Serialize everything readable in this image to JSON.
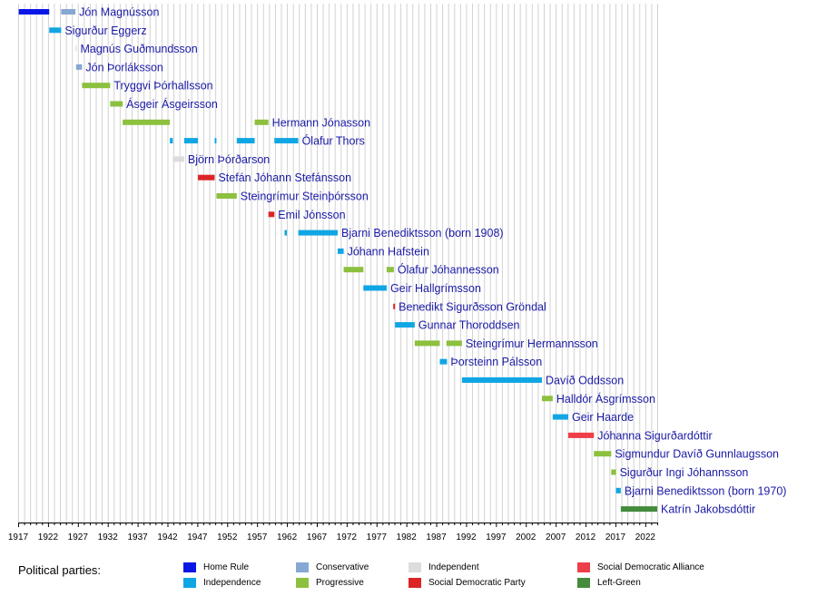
{
  "chart_data": {
    "type": "bar",
    "xlim": [
      1917,
      2024
    ],
    "x_ticks": [
      1917,
      1922,
      1927,
      1932,
      1937,
      1942,
      1947,
      1952,
      1957,
      1962,
      1967,
      1972,
      1977,
      1982,
      1987,
      1992,
      1997,
      2002,
      2007,
      2012,
      2017,
      2022
    ],
    "grid": "vertical yearly",
    "legend_title": "Political parties:",
    "parties": {
      "home_rule": {
        "name": "Home Rule",
        "color": "#0a16e6"
      },
      "independence": {
        "name": "Independence",
        "color": "#10a6e4"
      },
      "conservative": {
        "name": "Conservative",
        "color": "#86a8d2"
      },
      "progressive": {
        "name": "Progressive",
        "color": "#8cc03e"
      },
      "independent": {
        "name": "Independent",
        "color": "#dcdcdc"
      },
      "social_democratic_party": {
        "name": "Social Democratic Party",
        "color": "#dc2426"
      },
      "social_democratic_alliance": {
        "name": "Social Democratic Alliance",
        "color": "#ee3e48"
      },
      "left_green": {
        "name": "Left-Green",
        "color": "#448b3c"
      }
    },
    "legend_order": [
      "home_rule",
      "independence",
      "conservative",
      "progressive",
      "independent",
      "social_democratic_party",
      "social_democratic_alliance",
      "left_green"
    ],
    "prime_ministers": [
      {
        "name": "Jón Magnússon",
        "terms": [
          {
            "start": 1917.1,
            "end": 1922.2,
            "party": "home_rule"
          },
          {
            "start": 1924.2,
            "end": 1926.6,
            "party": "conservative"
          }
        ]
      },
      {
        "name": "Sigurður Eggerz",
        "terms": [
          {
            "start": 1922.2,
            "end": 1924.2,
            "party": "independence"
          }
        ]
      },
      {
        "name": "Magnús Guðmundsson",
        "terms": [
          {
            "start": 1926.6,
            "end": 1926.8,
            "party": "independent"
          }
        ]
      },
      {
        "name": "Jón Þorláksson",
        "terms": [
          {
            "start": 1926.7,
            "end": 1927.7,
            "party": "conservative"
          }
        ]
      },
      {
        "name": "Tryggvi Þórhallsson",
        "terms": [
          {
            "start": 1927.7,
            "end": 1932.4,
            "party": "progressive"
          }
        ]
      },
      {
        "name": "Ásgeir Ásgeirsson",
        "terms": [
          {
            "start": 1932.4,
            "end": 1934.5,
            "party": "progressive"
          }
        ]
      },
      {
        "name": "Hermann Jónasson",
        "terms": [
          {
            "start": 1934.5,
            "end": 1942.4,
            "party": "progressive"
          },
          {
            "start": 1956.6,
            "end": 1958.9,
            "party": "progressive"
          }
        ]
      },
      {
        "name": "Ólafur Thors",
        "terms": [
          {
            "start": 1942.4,
            "end": 1942.9,
            "party": "independence"
          },
          {
            "start": 1944.8,
            "end": 1947.1,
            "party": "independence"
          },
          {
            "start": 1949.9,
            "end": 1950.2,
            "party": "independence"
          },
          {
            "start": 1953.6,
            "end": 1956.6,
            "party": "independence"
          },
          {
            "start": 1959.9,
            "end": 1963.9,
            "party": "independence"
          }
        ]
      },
      {
        "name": "Björn Þórðarson",
        "terms": [
          {
            "start": 1942.9,
            "end": 1944.8,
            "party": "independent"
          }
        ]
      },
      {
        "name": "Stefán Jóhann Stefánsson",
        "terms": [
          {
            "start": 1947.1,
            "end": 1949.9,
            "party": "social_democratic_party"
          }
        ]
      },
      {
        "name": "Steingrímur Steinþórsson",
        "terms": [
          {
            "start": 1950.2,
            "end": 1953.6,
            "party": "progressive"
          }
        ]
      },
      {
        "name": "Emil Jónsson",
        "terms": [
          {
            "start": 1958.9,
            "end": 1959.9,
            "party": "social_democratic_party"
          }
        ]
      },
      {
        "name": "Bjarni Benediktsson (born 1908)",
        "terms": [
          {
            "start": 1961.6,
            "end": 1962.0,
            "party": "independence"
          },
          {
            "start": 1963.9,
            "end": 1970.5,
            "party": "independence"
          }
        ]
      },
      {
        "name": "Jóhann Hafstein",
        "terms": [
          {
            "start": 1970.5,
            "end": 1971.5,
            "party": "independence"
          }
        ]
      },
      {
        "name": "Ólafur Jóhannesson",
        "terms": [
          {
            "start": 1971.5,
            "end": 1974.8,
            "party": "progressive"
          },
          {
            "start": 1978.7,
            "end": 1979.9,
            "party": "progressive"
          }
        ]
      },
      {
        "name": "Geir Hallgrímsson",
        "terms": [
          {
            "start": 1974.8,
            "end": 1978.7,
            "party": "independence"
          }
        ]
      },
      {
        "name": "Benedikt Sigurðsson Gröndal",
        "terms": [
          {
            "start": 1979.8,
            "end": 1980.1,
            "party": "social_democratic_party"
          }
        ]
      },
      {
        "name": "Gunnar Thoroddsen",
        "terms": [
          {
            "start": 1980.1,
            "end": 1983.4,
            "party": "independence"
          }
        ]
      },
      {
        "name": "Steingrímur Hermannsson",
        "terms": [
          {
            "start": 1983.4,
            "end": 1987.6,
            "party": "progressive"
          },
          {
            "start": 1988.7,
            "end": 1991.3,
            "party": "progressive"
          }
        ]
      },
      {
        "name": "Þorsteinn Pálsson",
        "terms": [
          {
            "start": 1987.6,
            "end": 1988.8,
            "party": "independence"
          }
        ]
      },
      {
        "name": "Davíð Oddsson",
        "terms": [
          {
            "start": 1991.3,
            "end": 2004.7,
            "party": "independence"
          }
        ]
      },
      {
        "name": "Halldór Ásgrímsson",
        "terms": [
          {
            "start": 2004.7,
            "end": 2006.5,
            "party": "progressive"
          }
        ]
      },
      {
        "name": "Geir Haarde",
        "terms": [
          {
            "start": 2006.5,
            "end": 2009.1,
            "party": "independence"
          }
        ]
      },
      {
        "name": "Jóhanna Sigurðardóttir",
        "terms": [
          {
            "start": 2009.1,
            "end": 2013.4,
            "party": "social_democratic_alliance"
          }
        ]
      },
      {
        "name": "Sigmundur Davíð Gunnlaugsson",
        "terms": [
          {
            "start": 2013.4,
            "end": 2016.3,
            "party": "progressive"
          }
        ]
      },
      {
        "name": "Sigurður Ingi Jóhannsson",
        "terms": [
          {
            "start": 2016.3,
            "end": 2017.1,
            "party": "progressive"
          }
        ]
      },
      {
        "name": "Bjarni Benediktsson (born 1970)",
        "terms": [
          {
            "start": 2017.1,
            "end": 2017.9,
            "party": "independence"
          }
        ]
      },
      {
        "name": "Katrín Jakobsdóttir",
        "terms": [
          {
            "start": 2017.9,
            "end": 2024.0,
            "party": "left_green"
          }
        ]
      }
    ]
  }
}
